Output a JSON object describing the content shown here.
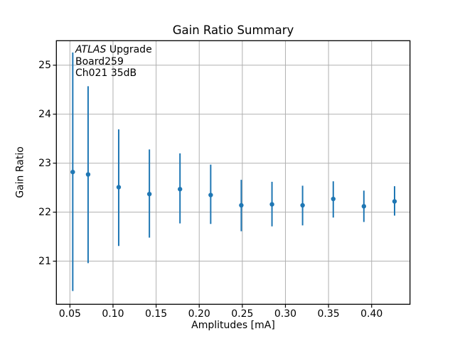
{
  "figure": {
    "background": "#ffffff",
    "colors": {
      "accent": "#1f77b4",
      "grid": "#b0b0b0",
      "spine": "#000000",
      "text": "#000000"
    }
  },
  "chart_data": {
    "type": "scatter",
    "title": "Gain Ratio Summary",
    "xlabel": "Amplitudes [mA]",
    "ylabel": "Gain Ratio",
    "xlim": [
      0.0343,
      0.4445
    ],
    "ylim": [
      20.12,
      25.5
    ],
    "xticks": [
      0.05,
      0.1,
      0.15,
      0.2,
      0.25,
      0.3,
      0.35,
      0.4
    ],
    "yticks": [
      21,
      22,
      23,
      24,
      25
    ],
    "grid": true,
    "annotation": {
      "line1_italic": "ATLAS",
      "line1_regular": " Upgrade",
      "line2": "Board259",
      "line3": "Ch021 35dB"
    },
    "series": [
      {
        "name": "gain-ratio-errorbar",
        "marker": "point",
        "color": "#1f77b4",
        "x": [
          0.0533,
          0.0711,
          0.1066,
          0.1422,
          0.1777,
          0.2133,
          0.2488,
          0.2844,
          0.3199,
          0.3555,
          0.391,
          0.4266
        ],
        "y": [
          22.82,
          22.77,
          22.51,
          22.37,
          22.47,
          22.35,
          22.14,
          22.16,
          22.14,
          22.27,
          22.12,
          22.22
        ],
        "y_high": [
          25.26,
          24.57,
          23.69,
          23.28,
          23.2,
          22.97,
          22.66,
          22.62,
          22.54,
          22.63,
          22.44,
          22.53
        ],
        "y_low": [
          20.39,
          20.96,
          21.31,
          21.48,
          21.77,
          21.76,
          21.61,
          21.71,
          21.73,
          21.89,
          21.8,
          21.93
        ]
      }
    ]
  }
}
